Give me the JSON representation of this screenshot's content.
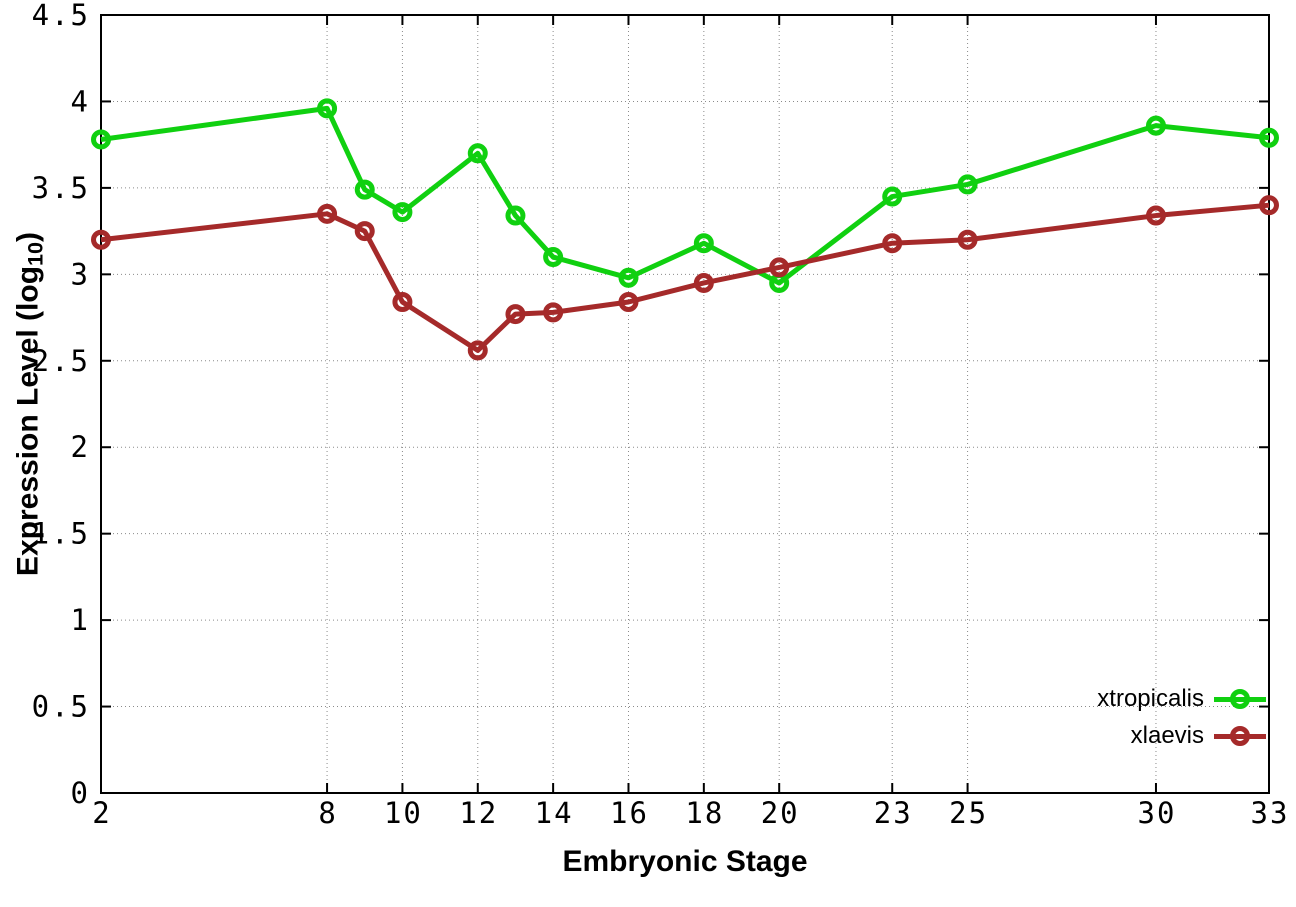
{
  "chart_data": {
    "type": "line",
    "title": "",
    "xlabel": "Embryonic Stage",
    "ylabel_prefix": "Expression Level (log",
    "ylabel_subscript": "10",
    "ylabel_suffix": ")",
    "xlim": [
      2,
      33
    ],
    "ylim": [
      0,
      4.5
    ],
    "xticks": [
      2,
      8,
      10,
      12,
      14,
      16,
      18,
      20,
      23,
      25,
      30,
      33
    ],
    "yticks": [
      0,
      0.5,
      1,
      1.5,
      2,
      2.5,
      3,
      3.5,
      4,
      4.5
    ],
    "grid": true,
    "legend_position": "bottom-right",
    "x": [
      2,
      8,
      9,
      10,
      12,
      13,
      14,
      16,
      18,
      20,
      23,
      25,
      30,
      33
    ],
    "series": [
      {
        "name": "xtropicalis",
        "color": "#10d010",
        "values": [
          3.78,
          3.96,
          3.49,
          3.36,
          3.7,
          3.34,
          3.1,
          2.98,
          3.18,
          2.95,
          3.45,
          3.52,
          3.86,
          3.79
        ]
      },
      {
        "name": "xlaevis",
        "color": "#a52a2a",
        "values": [
          3.2,
          3.35,
          3.25,
          2.84,
          2.56,
          2.77,
          2.78,
          2.84,
          2.95,
          3.04,
          3.18,
          3.2,
          3.34,
          3.4
        ]
      }
    ]
  }
}
